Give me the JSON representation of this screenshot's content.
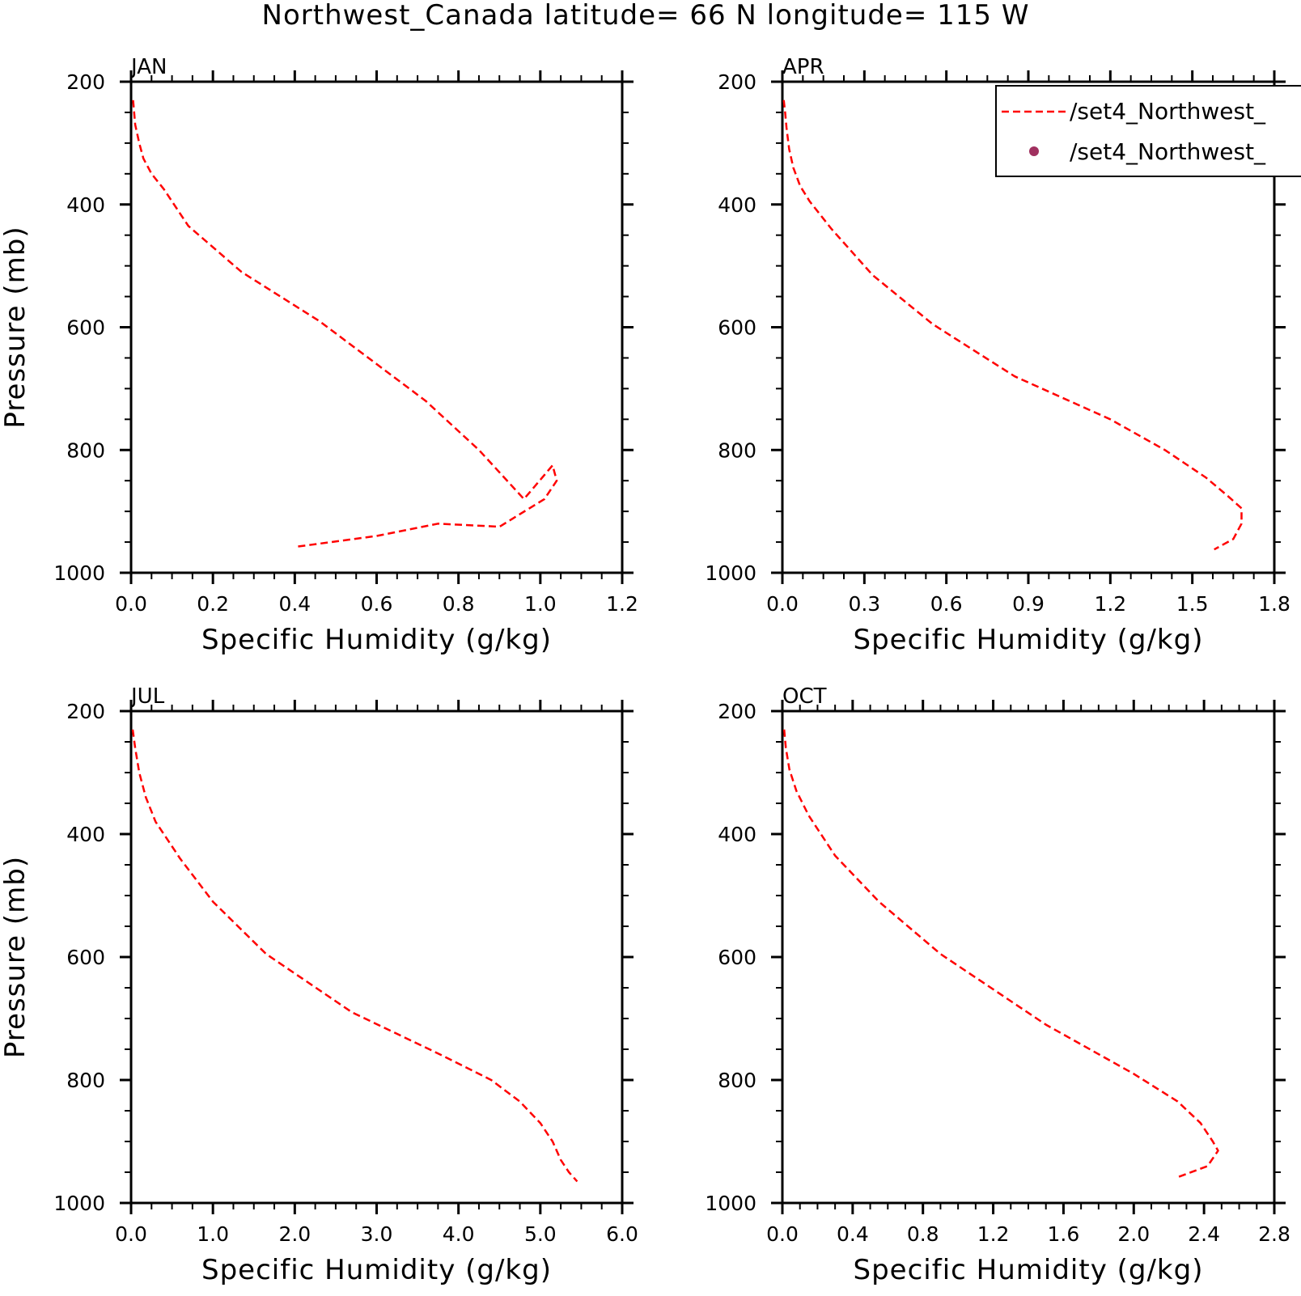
{
  "title": "Northwest_Canada  latitude= 66 N longitude= 115 W",
  "colors": {
    "model_line": "#ff0000",
    "obs_marker": "#a0305f"
  },
  "legend": {
    "placement": "top-right",
    "entries": [
      {
        "label": "/set4_Northwest_",
        "style": "dashed-line"
      },
      {
        "label": "/set4_Northwest_",
        "style": "dot"
      }
    ]
  },
  "chart_data": [
    {
      "type": "line",
      "month": "JAN",
      "xlabel": "Specific Humidity (g/kg)",
      "ylabel": "Pressure (mb)",
      "xlim": [
        0,
        1.2
      ],
      "ylim": [
        1000,
        200
      ],
      "yreversed": true,
      "xticks": [
        "0.0",
        "0.2",
        "0.4",
        "0.6",
        "0.8",
        "1.0",
        "1.2"
      ],
      "yticks": [
        "200",
        "400",
        "600",
        "800",
        "1000"
      ],
      "series": [
        {
          "x": [
            0.005,
            0.01,
            0.02,
            0.03,
            0.05,
            0.08,
            0.14,
            0.27,
            0.46,
            0.72,
            0.85,
            0.96,
            1.03,
            1.04,
            1.01,
            0.9,
            0.75,
            0.6,
            0.4
          ],
          "y": [
            230,
            270,
            300,
            325,
            350,
            375,
            435,
            510,
            590,
            720,
            800,
            880,
            825,
            850,
            880,
            925,
            920,
            940,
            958
          ]
        }
      ]
    },
    {
      "type": "line",
      "month": "APR",
      "xlabel": "Specific Humidity (g/kg)",
      "ylabel": "",
      "xlim": [
        0,
        1.8
      ],
      "ylim": [
        1000,
        200
      ],
      "yreversed": true,
      "xticks": [
        "0.0",
        "0.3",
        "0.6",
        "0.9",
        "1.2",
        "1.5",
        "1.8"
      ],
      "yticks": [
        "200",
        "400",
        "600",
        "800",
        "1000"
      ],
      "series": [
        {
          "x": [
            0.005,
            0.01,
            0.015,
            0.025,
            0.04,
            0.065,
            0.1,
            0.18,
            0.33,
            0.55,
            0.85,
            1.2,
            1.4,
            1.55,
            1.63,
            1.68,
            1.68,
            1.65,
            1.58
          ],
          "y": [
            230,
            250,
            275,
            310,
            340,
            370,
            395,
            440,
            515,
            595,
            680,
            750,
            800,
            845,
            875,
            895,
            920,
            945,
            962
          ]
        }
      ]
    },
    {
      "type": "line",
      "month": "JUL",
      "xlabel": "Specific Humidity (g/kg)",
      "ylabel": "Pressure (mb)",
      "xlim": [
        0,
        6
      ],
      "ylim": [
        1000,
        200
      ],
      "yreversed": true,
      "xticks": [
        "0.0",
        "1.0",
        "2.0",
        "3.0",
        "4.0",
        "5.0",
        "6.0"
      ],
      "yticks": [
        "200",
        "400",
        "600",
        "800",
        "1000"
      ],
      "series": [
        {
          "x": [
            0.02,
            0.05,
            0.1,
            0.18,
            0.3,
            0.6,
            1.0,
            1.65,
            2.7,
            3.8,
            4.4,
            4.75,
            5.0,
            5.15,
            5.25,
            5.35,
            5.45
          ],
          "y": [
            230,
            260,
            300,
            340,
            380,
            440,
            510,
            595,
            690,
            760,
            800,
            835,
            870,
            900,
            930,
            950,
            965
          ]
        }
      ]
    },
    {
      "type": "line",
      "month": "OCT",
      "xlabel": "Specific Humidity (g/kg)",
      "ylabel": "",
      "xlim": [
        0,
        2.8
      ],
      "ylim": [
        1000,
        200
      ],
      "yreversed": true,
      "xticks": [
        "0.0",
        "0.4",
        "0.8",
        "1.2",
        "1.6",
        "2.0",
        "2.4",
        "2.8"
      ],
      "yticks": [
        "200",
        "400",
        "600",
        "800",
        "1000"
      ],
      "series": [
        {
          "x": [
            0.01,
            0.02,
            0.04,
            0.08,
            0.15,
            0.3,
            0.55,
            0.9,
            1.5,
            2.0,
            2.25,
            2.38,
            2.45,
            2.48,
            2.42,
            2.25
          ],
          "y": [
            230,
            260,
            295,
            330,
            370,
            435,
            510,
            595,
            710,
            790,
            835,
            870,
            900,
            915,
            940,
            958
          ]
        }
      ]
    }
  ]
}
